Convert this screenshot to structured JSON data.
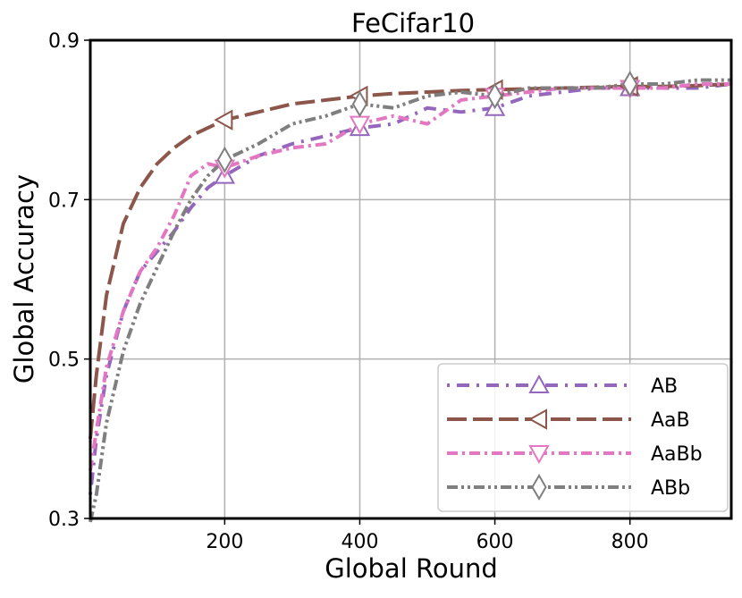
{
  "chart_data": {
    "type": "line",
    "title": "FeCifar10",
    "xlabel": "Global Round",
    "ylabel": "Global Accuracy",
    "xlim": [
      1,
      950
    ],
    "ylim": [
      0.3,
      0.9
    ],
    "xticks": [
      200,
      400,
      600,
      800
    ],
    "yticks": [
      0.3,
      0.5,
      0.7,
      0.9
    ],
    "xtick_labels": [
      "200",
      "400",
      "600",
      "800"
    ],
    "ytick_labels": [
      "0.3",
      "0.5",
      "0.7",
      "0.9"
    ],
    "grid": true,
    "legend_position": "lower-right",
    "series": [
      {
        "name": "AB",
        "color": "#9467bd",
        "dash": "dotted-dashed",
        "marker": "triangle-up",
        "marker_x": [
          200,
          400,
          600,
          800
        ],
        "x": [
          1,
          10,
          25,
          50,
          75,
          100,
          125,
          150,
          175,
          200,
          250,
          300,
          350,
          400,
          450,
          500,
          550,
          600,
          650,
          700,
          750,
          800,
          850,
          900,
          950
        ],
        "y": [
          0.33,
          0.4,
          0.48,
          0.56,
          0.61,
          0.635,
          0.66,
          0.69,
          0.715,
          0.73,
          0.755,
          0.77,
          0.78,
          0.79,
          0.795,
          0.815,
          0.81,
          0.815,
          0.83,
          0.835,
          0.84,
          0.84,
          0.84,
          0.84,
          0.845
        ]
      },
      {
        "name": "AaB",
        "color": "#8c564b",
        "dash": "long-dash",
        "marker": "triangle-left",
        "marker_x": [
          200,
          400,
          600,
          800
        ],
        "x": [
          1,
          10,
          25,
          50,
          75,
          100,
          125,
          150,
          175,
          200,
          250,
          300,
          350,
          400,
          450,
          500,
          550,
          600,
          650,
          700,
          750,
          800,
          850,
          900,
          950
        ],
        "y": [
          0.4,
          0.48,
          0.58,
          0.67,
          0.715,
          0.745,
          0.765,
          0.78,
          0.79,
          0.8,
          0.81,
          0.82,
          0.825,
          0.83,
          0.833,
          0.835,
          0.837,
          0.838,
          0.839,
          0.84,
          0.841,
          0.842,
          0.842,
          0.843,
          0.845
        ]
      },
      {
        "name": "AaBb",
        "color": "#e377c2",
        "dash": "dash-dot",
        "marker": "triangle-down",
        "marker_x": [
          200,
          400,
          600,
          800
        ],
        "x": [
          1,
          10,
          25,
          50,
          75,
          100,
          125,
          150,
          175,
          200,
          250,
          300,
          350,
          400,
          450,
          500,
          550,
          600,
          650,
          700,
          750,
          800,
          850,
          900,
          950
        ],
        "y": [
          0.36,
          0.41,
          0.49,
          0.56,
          0.61,
          0.64,
          0.68,
          0.73,
          0.745,
          0.74,
          0.755,
          0.765,
          0.77,
          0.795,
          0.805,
          0.795,
          0.825,
          0.83,
          0.835,
          0.84,
          0.84,
          0.84,
          0.84,
          0.845,
          0.845
        ]
      },
      {
        "name": "ABb",
        "color": "#7f7f7f",
        "dash": "dash-dot-dot",
        "marker": "diamond",
        "marker_x": [
          200,
          400,
          600,
          800
        ],
        "x": [
          1,
          10,
          25,
          50,
          75,
          100,
          125,
          150,
          175,
          200,
          250,
          300,
          350,
          400,
          450,
          500,
          550,
          600,
          650,
          700,
          750,
          800,
          850,
          900,
          950
        ],
        "y": [
          0.29,
          0.33,
          0.42,
          0.51,
          0.57,
          0.615,
          0.66,
          0.7,
          0.73,
          0.75,
          0.77,
          0.795,
          0.805,
          0.82,
          0.815,
          0.83,
          0.835,
          0.83,
          0.84,
          0.84,
          0.84,
          0.845,
          0.845,
          0.85,
          0.85
        ]
      }
    ]
  }
}
